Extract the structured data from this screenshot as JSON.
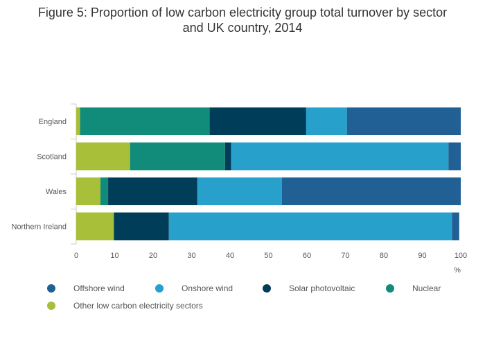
{
  "chart_data": {
    "type": "bar",
    "orientation": "horizontal",
    "stacked": true,
    "title_line1": "Figure 5: Proportion of low carbon electricity group total turnover by sector",
    "title_line2": "and UK country, 2014",
    "x_unit": "%",
    "xlim": [
      0,
      100
    ],
    "x_ticks": [
      0,
      10,
      20,
      30,
      40,
      50,
      60,
      70,
      80,
      90,
      100
    ],
    "categories": [
      "England",
      "Scotland",
      "Wales",
      "Northern Ireland"
    ],
    "series": [
      {
        "name": "Other low carbon electricity sectors",
        "color": "#a8bf3a",
        "values": [
          1,
          14,
          6.3,
          9.8
        ]
      },
      {
        "name": "Nuclear",
        "color": "#118c7b",
        "values": [
          33.7,
          24.7,
          2,
          0
        ]
      },
      {
        "name": "Solar photovoltaic",
        "color": "#003d59",
        "values": [
          25.1,
          1.6,
          23.2,
          14.3
        ]
      },
      {
        "name": "Onshore wind",
        "color": "#27a0cc",
        "values": [
          10.6,
          56.5,
          22,
          73.6
        ]
      },
      {
        "name": "Offshore wind",
        "color": "#206095",
        "values": [
          29.6,
          3.2,
          46.5,
          1.9
        ]
      }
    ],
    "legend_order": [
      "Offshore wind",
      "Onshore wind",
      "Solar photovoltaic",
      "Nuclear",
      "Other low carbon electricity sectors"
    ],
    "legend_position": "bottom",
    "grid": false
  }
}
